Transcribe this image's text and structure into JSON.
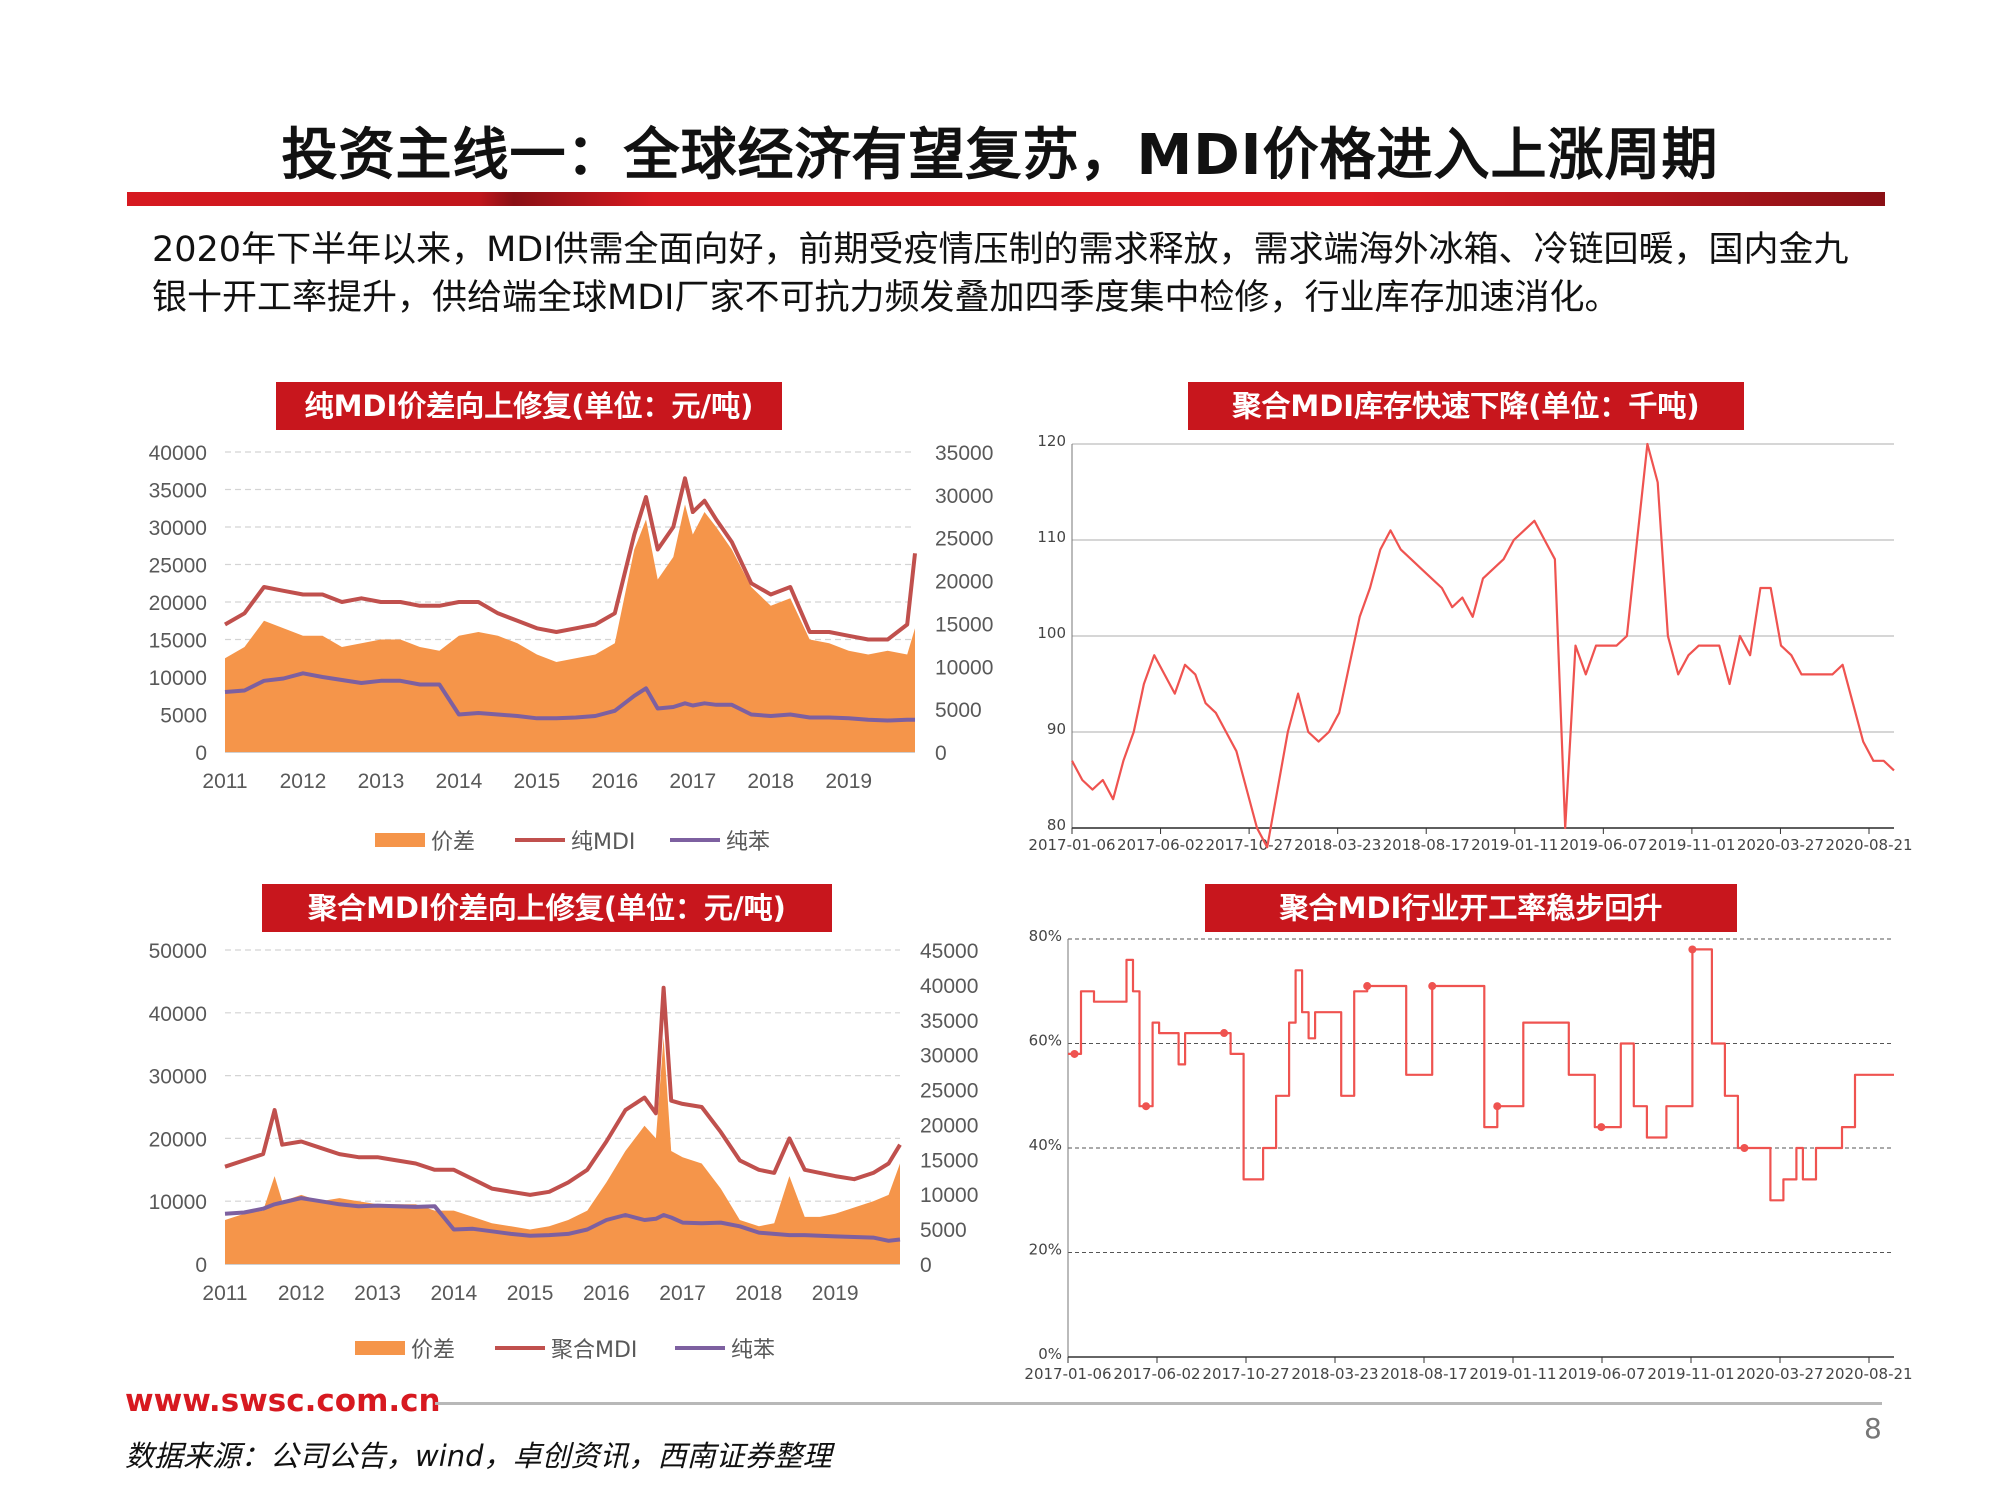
{
  "page": {
    "title": "投资主线一：全球经济有望复苏，MDI价格进入上涨周期",
    "intro": "2020年下半年以来，MDI供需全面向好，前期受疫情压制的需求释放，需求端海外冰箱、冷链回暖，国内金九银十开工率提升，供给端全球MDI厂家不可抗力频发叠加四季度集中检修，行业库存加速消化。",
    "footer_url": "www.swsc.com.cn",
    "page_number": "8",
    "source": "数据来源：公司公告，wind，卓创资讯，西南证券整理"
  },
  "colors": {
    "accent_red": "#c8161d",
    "spread_orange": "#f5954a",
    "mdi_red": "#c0504d",
    "benzene_purple": "#7d60a0",
    "line_red": "#ef5350"
  },
  "chart_data": [
    {
      "type": "area",
      "title": "纯MDI价差向上修复(单位：元/吨)",
      "x_ticks": [
        "2011",
        "2012",
        "2013",
        "2014",
        "2015",
        "2016",
        "2017",
        "2018",
        "2019"
      ],
      "left_ticks": [
        "40000",
        "35000",
        "30000",
        "25000",
        "20000",
        "15000",
        "10000",
        "5000",
        "0"
      ],
      "right_ticks": [
        "35000",
        "30000",
        "25000",
        "20000",
        "15000",
        "10000",
        "5000",
        "0"
      ],
      "ylim": [
        0,
        40000
      ],
      "y2lim": [
        0,
        35000
      ],
      "legend": [
        "价差",
        "纯MDI",
        "纯苯"
      ],
      "x": [
        2011.0,
        2011.25,
        2011.5,
        2011.75,
        2012.0,
        2012.25,
        2012.5,
        2012.75,
        2013.0,
        2013.25,
        2013.5,
        2013.75,
        2014.0,
        2014.25,
        2014.5,
        2014.75,
        2015.0,
        2015.25,
        2015.5,
        2015.75,
        2016.0,
        2016.25,
        2016.4,
        2016.55,
        2016.75,
        2016.9,
        2017.0,
        2017.15,
        2017.3,
        2017.5,
        2017.75,
        2018.0,
        2018.25,
        2018.5,
        2018.75,
        2019.0,
        2019.25,
        2019.5,
        2019.75,
        2019.85
      ],
      "series": [
        {
          "name": "价差",
          "values": [
            12500,
            14000,
            17500,
            16500,
            15500,
            15500,
            14000,
            14500,
            15000,
            15000,
            14000,
            13500,
            15500,
            16000,
            15500,
            14500,
            13000,
            12000,
            12500,
            13000,
            14500,
            27000,
            31000,
            23000,
            26000,
            33000,
            29000,
            32000,
            30000,
            27000,
            22000,
            19500,
            20500,
            15000,
            14500,
            13500,
            13000,
            13500,
            13000,
            16500
          ]
        },
        {
          "name": "纯MDI",
          "values": [
            17000,
            18500,
            22000,
            21500,
            21000,
            21000,
            20000,
            20500,
            20000,
            20000,
            19500,
            19500,
            20000,
            20000,
            18500,
            17500,
            16500,
            16000,
            16500,
            17000,
            18500,
            29000,
            34000,
            27000,
            30000,
            36500,
            32000,
            33500,
            31000,
            28000,
            22500,
            21000,
            22000,
            16000,
            16000,
            15500,
            15000,
            15000,
            17000,
            26500
          ]
        },
        {
          "name": "纯苯",
          "values": [
            8000,
            8200,
            9500,
            9800,
            10500,
            10000,
            9600,
            9200,
            9500,
            9500,
            9000,
            9000,
            5000,
            5200,
            5000,
            4800,
            4500,
            4500,
            4600,
            4800,
            5500,
            7500,
            8500,
            5800,
            6000,
            6500,
            6200,
            6500,
            6300,
            6300,
            5000,
            4800,
            5000,
            4600,
            4600,
            4500,
            4300,
            4200,
            4300,
            4300
          ]
        }
      ]
    },
    {
      "type": "line",
      "title": "聚合MDI库存快速下降(单位：千吨)",
      "x_ticks": [
        "2017-01-06",
        "2017-06-02",
        "2017-10-27",
        "2018-03-23",
        "2018-08-17",
        "2019-01-11",
        "2019-06-07",
        "2019-11-01",
        "2020-03-27",
        "2020-08-21"
      ],
      "y_ticks": [
        "120",
        "110",
        "100",
        "90",
        "80"
      ],
      "ylim": [
        80,
        120
      ],
      "values": [
        87,
        85,
        84,
        85,
        83,
        87,
        90,
        95,
        98,
        96,
        94,
        97,
        96,
        93,
        92,
        90,
        88,
        84,
        80,
        78,
        84,
        90,
        94,
        90,
        89,
        90,
        92,
        97,
        102,
        105,
        109,
        111,
        109,
        108,
        107,
        106,
        105,
        103,
        104,
        102,
        106,
        107,
        108,
        110,
        111,
        112,
        110,
        108,
        80,
        99,
        96,
        99,
        99,
        99,
        100,
        110,
        120,
        116,
        100,
        96,
        98,
        99,
        99,
        99,
        95,
        100,
        98,
        105,
        105,
        99,
        98,
        96,
        96,
        96,
        96,
        97,
        93,
        89,
        87,
        87,
        86
      ]
    },
    {
      "type": "area",
      "title": "聚合MDI价差向上修复(单位：元/吨)",
      "x_ticks": [
        "2011",
        "2012",
        "2013",
        "2014",
        "2015",
        "2016",
        "2017",
        "2018",
        "2019"
      ],
      "left_ticks": [
        "50000",
        "40000",
        "30000",
        "20000",
        "10000",
        "0"
      ],
      "right_ticks": [
        "45000",
        "40000",
        "35000",
        "30000",
        "25000",
        "20000",
        "15000",
        "10000",
        "5000",
        "0"
      ],
      "ylim": [
        0,
        50000
      ],
      "y2lim": [
        0,
        45000
      ],
      "legend": [
        "价差",
        "聚合MDI",
        "纯苯"
      ],
      "x": [
        2011.0,
        2011.25,
        2011.5,
        2011.65,
        2011.75,
        2012.0,
        2012.25,
        2012.5,
        2012.75,
        2013.0,
        2013.25,
        2013.5,
        2013.75,
        2014.0,
        2014.25,
        2014.5,
        2014.75,
        2015.0,
        2015.25,
        2015.5,
        2015.75,
        2016.0,
        2016.25,
        2016.5,
        2016.65,
        2016.75,
        2016.85,
        2017.0,
        2017.25,
        2017.5,
        2017.75,
        2018.0,
        2018.2,
        2018.4,
        2018.6,
        2018.8,
        2019.0,
        2019.25,
        2019.5,
        2019.7,
        2019.85
      ],
      "series": [
        {
          "name": "价差",
          "values": [
            7000,
            8000,
            8500,
            14000,
            10000,
            11000,
            10000,
            10500,
            10000,
            9500,
            9500,
            9500,
            8500,
            8500,
            7500,
            6500,
            6000,
            5500,
            6000,
            7000,
            8500,
            13000,
            18000,
            22000,
            20000,
            36000,
            18000,
            17000,
            16000,
            12000,
            7000,
            6000,
            6500,
            14000,
            7500,
            7500,
            8000,
            9000,
            10000,
            11000,
            16000
          ]
        },
        {
          "name": "聚合MDI",
          "values": [
            15500,
            16500,
            17500,
            24500,
            19000,
            19500,
            18500,
            17500,
            17000,
            17000,
            16500,
            16000,
            15000,
            15000,
            13500,
            12000,
            11500,
            11000,
            11500,
            13000,
            15000,
            19500,
            24500,
            26500,
            24000,
            44000,
            26000,
            25500,
            25000,
            21000,
            16500,
            15000,
            14500,
            20000,
            15000,
            14500,
            14000,
            13500,
            14500,
            16000,
            19000
          ]
        },
        {
          "name": "纯苯",
          "values": [
            8000,
            8200,
            8800,
            9500,
            9800,
            10500,
            10000,
            9500,
            9200,
            9300,
            9200,
            9100,
            9200,
            5500,
            5600,
            5200,
            4800,
            4500,
            4600,
            4800,
            5500,
            7000,
            7800,
            7000,
            7200,
            7800,
            7400,
            6600,
            6500,
            6600,
            6000,
            5000,
            4800,
            4600,
            4600,
            4500,
            4400,
            4300,
            4200,
            3700,
            3900
          ]
        }
      ]
    },
    {
      "type": "line",
      "title": "聚合MDI行业开工率稳步回升",
      "x_ticks": [
        "2017-01-06",
        "2017-06-02",
        "2017-10-27",
        "2018-03-23",
        "2018-08-17",
        "2019-01-11",
        "2019-06-07",
        "2019-11-01",
        "2020-03-27",
        "2020-08-21"
      ],
      "y_ticks": [
        "80%",
        "60%",
        "40%",
        "20%",
        "0%"
      ],
      "ylim": [
        0,
        80
      ],
      "values": [
        58,
        58,
        70,
        70,
        68,
        68,
        68,
        68,
        68,
        76,
        70,
        48,
        48,
        64,
        62,
        62,
        62,
        56,
        62,
        62,
        62,
        62,
        62,
        62,
        62,
        58,
        58,
        34,
        34,
        34,
        40,
        40,
        50,
        50,
        64,
        74,
        66,
        61,
        66,
        66,
        66,
        66,
        50,
        50,
        70,
        70,
        71,
        71,
        71,
        71,
        71,
        71,
        54,
        54,
        54,
        54,
        71,
        71,
        71,
        71,
        71,
        71,
        71,
        71,
        44,
        44,
        48,
        48,
        48,
        48,
        64,
        64,
        64,
        64,
        64,
        64,
        64,
        54,
        54,
        54,
        54,
        44,
        44,
        44,
        44,
        60,
        60,
        48,
        48,
        42,
        42,
        42,
        48,
        48,
        48,
        48,
        78,
        78,
        78,
        60,
        60,
        50,
        50,
        40,
        40,
        40,
        40,
        40,
        30,
        30,
        34,
        34,
        40,
        34,
        34,
        40,
        40,
        40,
        40,
        44,
        44,
        54,
        54,
        54,
        54,
        54,
        54,
        54
      ]
    }
  ]
}
